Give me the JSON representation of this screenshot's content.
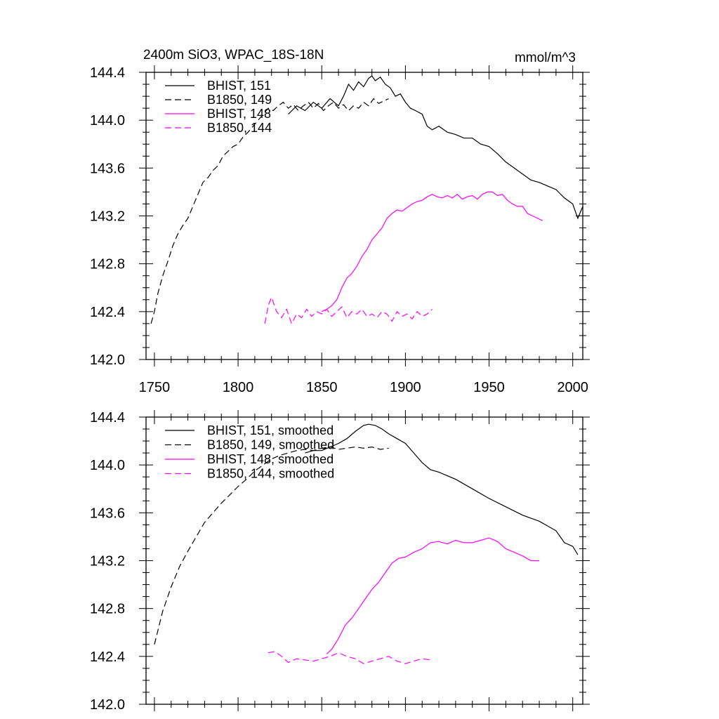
{
  "chart_data": [
    {
      "type": "line",
      "title": "2400m SiO3, WPAC_18S-18N",
      "units": "mmol/m^3",
      "xlim": [
        1745,
        2006
      ],
      "ylim": [
        142.0,
        144.4
      ],
      "xticks": [
        1750,
        1800,
        1850,
        1900,
        1950,
        2000
      ],
      "xtick_labels": [
        "1750",
        "1800",
        "1850",
        "1900",
        "1950",
        "2000"
      ],
      "yticks": [
        142.0,
        142.4,
        142.8,
        143.2,
        143.6,
        144.0,
        144.4
      ],
      "ytick_labels": [
        "142.0",
        "142.4",
        "142.8",
        "143.2",
        "143.6",
        "144.0",
        "144.4"
      ],
      "series": [
        {
          "name": "BHIST, 151",
          "color": "#000000",
          "dash": "solid",
          "x": [
            1830,
            1835,
            1840,
            1845,
            1850,
            1855,
            1860,
            1863,
            1866,
            1869,
            1872,
            1875,
            1878,
            1880,
            1882,
            1885,
            1888,
            1891,
            1894,
            1897,
            1900,
            1903,
            1906,
            1910,
            1913,
            1916,
            1920,
            1925,
            1930,
            1935,
            1940,
            1945,
            1950,
            1955,
            1960,
            1965,
            1970,
            1975,
            1980,
            1985,
            1990,
            1995,
            2000,
            2003,
            2006
          ],
          "y": [
            144.05,
            144.12,
            144.08,
            144.15,
            144.1,
            144.18,
            144.12,
            144.2,
            144.3,
            144.25,
            144.32,
            144.28,
            144.35,
            144.37,
            144.33,
            144.36,
            144.3,
            144.27,
            144.2,
            144.22,
            144.15,
            144.1,
            144.08,
            144.05,
            143.95,
            143.92,
            143.95,
            143.9,
            143.88,
            143.85,
            143.85,
            143.8,
            143.78,
            143.72,
            143.65,
            143.6,
            143.55,
            143.5,
            143.48,
            143.45,
            143.42,
            143.35,
            143.3,
            143.18,
            143.28
          ]
        },
        {
          "name": "B1850, 149",
          "color": "#000000",
          "dash": "dashed",
          "x": [
            1748,
            1750,
            1752,
            1755,
            1758,
            1761,
            1764,
            1767,
            1770,
            1773,
            1776,
            1779,
            1782,
            1785,
            1788,
            1791,
            1794,
            1797,
            1800,
            1803,
            1806,
            1809,
            1812,
            1815,
            1818,
            1821,
            1824,
            1827,
            1830,
            1833,
            1836,
            1839,
            1842,
            1845,
            1848,
            1851,
            1854,
            1857,
            1860,
            1863,
            1866,
            1869,
            1872,
            1875,
            1878,
            1881,
            1884,
            1887,
            1890
          ],
          "y": [
            142.3,
            142.4,
            142.55,
            142.7,
            142.82,
            142.95,
            143.05,
            143.12,
            143.18,
            143.28,
            143.38,
            143.48,
            143.52,
            143.58,
            143.62,
            143.7,
            143.74,
            143.78,
            143.8,
            143.86,
            143.9,
            143.95,
            144.0,
            144.05,
            144.1,
            144.08,
            144.12,
            144.15,
            144.1,
            144.13,
            144.08,
            144.12,
            144.15,
            144.1,
            144.14,
            144.08,
            144.12,
            144.15,
            144.1,
            144.13,
            144.08,
            144.12,
            144.1,
            144.15,
            144.12,
            144.18,
            144.14,
            144.16,
            144.18
          ]
        },
        {
          "name": "BHIST, 148",
          "color": "#ff00ff",
          "dash": "solid",
          "x": [
            1850,
            1853,
            1856,
            1859,
            1862,
            1865,
            1868,
            1871,
            1874,
            1877,
            1880,
            1883,
            1886,
            1889,
            1892,
            1895,
            1898,
            1901,
            1904,
            1907,
            1910,
            1913,
            1916,
            1919,
            1922,
            1925,
            1928,
            1931,
            1934,
            1937,
            1940,
            1943,
            1946,
            1949,
            1952,
            1955,
            1958,
            1961,
            1964,
            1967,
            1970,
            1973,
            1976,
            1979,
            1982
          ],
          "y": [
            142.4,
            142.42,
            142.45,
            142.5,
            142.6,
            142.68,
            142.72,
            142.78,
            142.86,
            142.92,
            143.0,
            143.05,
            143.1,
            143.18,
            143.22,
            143.25,
            143.24,
            143.27,
            143.3,
            143.32,
            143.33,
            143.36,
            143.38,
            143.36,
            143.35,
            143.37,
            143.35,
            143.38,
            143.34,
            143.36,
            143.37,
            143.34,
            143.38,
            143.4,
            143.4,
            143.37,
            143.38,
            143.33,
            143.3,
            143.28,
            143.28,
            143.22,
            143.2,
            143.18,
            143.16
          ]
        },
        {
          "name": "B1850, 144",
          "color": "#ff00ff",
          "dash": "dashed",
          "x": [
            1816,
            1818,
            1820,
            1823,
            1826,
            1829,
            1832,
            1835,
            1838,
            1841,
            1844,
            1847,
            1850,
            1853,
            1856,
            1859,
            1862,
            1865,
            1868,
            1871,
            1874,
            1877,
            1880,
            1883,
            1886,
            1889,
            1892,
            1895,
            1898,
            1901,
            1904,
            1907,
            1910,
            1913,
            1916
          ],
          "y": [
            142.3,
            142.45,
            142.52,
            142.4,
            142.35,
            142.42,
            142.3,
            142.38,
            142.35,
            142.42,
            142.36,
            142.4,
            142.38,
            142.42,
            142.36,
            142.4,
            142.44,
            142.35,
            142.4,
            142.38,
            142.42,
            142.36,
            142.38,
            142.35,
            142.4,
            142.38,
            142.32,
            142.4,
            142.36,
            142.38,
            142.34,
            142.4,
            142.36,
            142.38,
            142.42
          ]
        }
      ]
    },
    {
      "type": "line",
      "xlim": [
        1745,
        2006
      ],
      "ylim": [
        142.0,
        144.4
      ],
      "xticks": [
        1750,
        1800,
        1850,
        1900,
        1950,
        2000
      ],
      "yticks": [
        142.0,
        142.4,
        142.8,
        143.2,
        143.6,
        144.0,
        144.4
      ],
      "ytick_labels": [
        "142.0",
        "142.4",
        "142.8",
        "143.2",
        "143.6",
        "144.0",
        "144.4"
      ],
      "series": [
        {
          "name": "BHIST, 151, smoothed",
          "color": "#000000",
          "dash": "solid",
          "x": [
            1840,
            1845,
            1850,
            1855,
            1860,
            1865,
            1870,
            1875,
            1878,
            1882,
            1886,
            1890,
            1895,
            1900,
            1905,
            1910,
            1915,
            1920,
            1930,
            1940,
            1950,
            1960,
            1970,
            1980,
            1990,
            1995,
            2000,
            2003
          ],
          "y": [
            144.1,
            144.12,
            144.12,
            144.15,
            144.18,
            144.22,
            144.28,
            144.33,
            144.34,
            144.33,
            144.3,
            144.26,
            144.22,
            144.18,
            144.1,
            144.02,
            143.96,
            143.94,
            143.88,
            143.8,
            143.72,
            143.65,
            143.58,
            143.53,
            143.45,
            143.35,
            143.32,
            143.25
          ]
        },
        {
          "name": "B1850, 149, smoothed",
          "color": "#000000",
          "dash": "dashed",
          "x": [
            1750,
            1755,
            1760,
            1765,
            1770,
            1775,
            1780,
            1785,
            1790,
            1795,
            1800,
            1805,
            1810,
            1815,
            1820,
            1825,
            1830,
            1835,
            1840,
            1845,
            1850,
            1855,
            1860,
            1865,
            1870,
            1875,
            1880,
            1885,
            1890
          ],
          "y": [
            142.5,
            142.78,
            142.98,
            143.15,
            143.28,
            143.4,
            143.52,
            143.6,
            143.68,
            143.75,
            143.82,
            143.88,
            143.95,
            144.0,
            144.05,
            144.08,
            144.1,
            144.12,
            144.13,
            144.12,
            144.14,
            144.15,
            144.13,
            144.14,
            144.15,
            144.14,
            144.15,
            144.13,
            144.14
          ]
        },
        {
          "name": "BHIST, 148, smoothed",
          "color": "#ff00ff",
          "dash": "solid",
          "x": [
            1853,
            1856,
            1860,
            1864,
            1868,
            1872,
            1876,
            1880,
            1884,
            1888,
            1892,
            1896,
            1900,
            1905,
            1910,
            1915,
            1920,
            1925,
            1930,
            1935,
            1940,
            1945,
            1950,
            1955,
            1960,
            1965,
            1970,
            1975,
            1980
          ],
          "y": [
            142.42,
            142.46,
            142.55,
            142.66,
            142.72,
            142.8,
            142.88,
            142.96,
            143.02,
            143.1,
            143.18,
            143.22,
            143.23,
            143.27,
            143.3,
            143.35,
            143.36,
            143.34,
            143.37,
            143.35,
            143.35,
            143.37,
            143.39,
            143.36,
            143.3,
            143.27,
            143.24,
            143.2,
            143.2
          ]
        },
        {
          "name": "B1850, 144, smoothed",
          "color": "#ff00ff",
          "dash": "dashed",
          "x": [
            1818,
            1822,
            1826,
            1830,
            1835,
            1840,
            1845,
            1850,
            1855,
            1860,
            1865,
            1870,
            1875,
            1880,
            1885,
            1890,
            1895,
            1900,
            1905,
            1910,
            1915
          ],
          "y": [
            142.43,
            142.44,
            142.4,
            142.35,
            142.38,
            142.37,
            142.36,
            142.38,
            142.4,
            142.43,
            142.4,
            142.38,
            142.34,
            142.36,
            142.38,
            142.4,
            142.36,
            142.34,
            142.36,
            142.38,
            142.37
          ]
        }
      ]
    }
  ]
}
